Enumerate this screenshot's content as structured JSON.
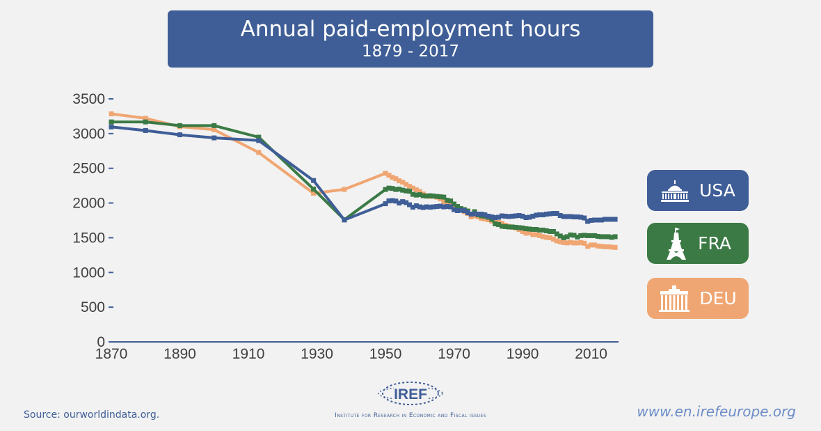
{
  "header": {
    "title": "Annual paid-employment hours",
    "subtitle": "1879 - 2017"
  },
  "legend": [
    {
      "label": "USA",
      "icon": "capitol-icon",
      "color": "#3f5e97"
    },
    {
      "label": "FRA",
      "icon": "eiffel-tower-icon",
      "color": "#3b7a45"
    },
    {
      "label": "DEU",
      "icon": "brandenburg-gate-icon",
      "color": "#f0a672"
    }
  ],
  "footer": {
    "source": "Source: ourworldindata.org.",
    "url": "www.en.irefeurope.org",
    "logo_text": "IREF",
    "institute": "Institute for Research in Economic and Fiscal issues"
  },
  "chart_data": {
    "type": "line",
    "title": "Annual paid-employment hours",
    "subtitle": "1879 - 2017",
    "xlabel": "",
    "ylabel": "",
    "xlim": [
      1870,
      2018
    ],
    "ylim": [
      0,
      3500
    ],
    "xticks": [
      1870,
      1890,
      1910,
      1930,
      1950,
      1970,
      1990,
      2010
    ],
    "yticks": [
      0,
      500,
      1000,
      1500,
      2000,
      2500,
      3000,
      3500
    ],
    "series": [
      {
        "name": "USA",
        "color": "#3f5e97",
        "points": [
          [
            1870,
            3096
          ],
          [
            1880,
            3044
          ],
          [
            1890,
            2983
          ],
          [
            1900,
            2938
          ],
          [
            1913,
            2900
          ],
          [
            1929,
            2324
          ],
          [
            1938,
            1756
          ],
          [
            1950,
            1990
          ],
          [
            1951,
            2030
          ],
          [
            1952,
            2035
          ],
          [
            1953,
            2028
          ],
          [
            1954,
            2000
          ],
          [
            1955,
            2020
          ],
          [
            1956,
            2005
          ],
          [
            1957,
            1975
          ],
          [
            1958,
            1940
          ],
          [
            1959,
            1960
          ],
          [
            1960,
            1945
          ],
          [
            1961,
            1935
          ],
          [
            1962,
            1945
          ],
          [
            1963,
            1940
          ],
          [
            1964,
            1945
          ],
          [
            1965,
            1950
          ],
          [
            1966,
            1955
          ],
          [
            1967,
            1945
          ],
          [
            1968,
            1950
          ],
          [
            1969,
            1945
          ],
          [
            1970,
            1905
          ],
          [
            1971,
            1890
          ],
          [
            1972,
            1895
          ],
          [
            1973,
            1890
          ],
          [
            1974,
            1860
          ],
          [
            1975,
            1840
          ],
          [
            1976,
            1845
          ],
          [
            1977,
            1840
          ],
          [
            1978,
            1840
          ],
          [
            1979,
            1830
          ],
          [
            1980,
            1810
          ],
          [
            1981,
            1800
          ],
          [
            1982,
            1790
          ],
          [
            1983,
            1795
          ],
          [
            1984,
            1815
          ],
          [
            1985,
            1810
          ],
          [
            1986,
            1805
          ],
          [
            1987,
            1810
          ],
          [
            1988,
            1815
          ],
          [
            1989,
            1820
          ],
          [
            1990,
            1810
          ],
          [
            1991,
            1790
          ],
          [
            1992,
            1795
          ],
          [
            1993,
            1810
          ],
          [
            1994,
            1825
          ],
          [
            1995,
            1830
          ],
          [
            1996,
            1830
          ],
          [
            1997,
            1840
          ],
          [
            1998,
            1845
          ],
          [
            1999,
            1850
          ],
          [
            2000,
            1850
          ],
          [
            2001,
            1820
          ],
          [
            2002,
            1805
          ],
          [
            2003,
            1805
          ],
          [
            2004,
            1805
          ],
          [
            2005,
            1800
          ],
          [
            2006,
            1800
          ],
          [
            2007,
            1795
          ],
          [
            2008,
            1785
          ],
          [
            2009,
            1735
          ],
          [
            2010,
            1750
          ],
          [
            2011,
            1755
          ],
          [
            2012,
            1755
          ],
          [
            2013,
            1755
          ],
          [
            2014,
            1765
          ],
          [
            2015,
            1765
          ],
          [
            2016,
            1765
          ],
          [
            2017,
            1765
          ]
        ]
      },
      {
        "name": "FRA",
        "color": "#3b7a45",
        "points": [
          [
            1870,
            3168
          ],
          [
            1880,
            3168
          ],
          [
            1890,
            3115
          ],
          [
            1900,
            3115
          ],
          [
            1913,
            2948
          ],
          [
            1929,
            2200
          ],
          [
            1938,
            1760
          ],
          [
            1950,
            2195
          ],
          [
            1951,
            2215
          ],
          [
            1952,
            2210
          ],
          [
            1953,
            2195
          ],
          [
            1954,
            2200
          ],
          [
            1955,
            2185
          ],
          [
            1956,
            2175
          ],
          [
            1957,
            2170
          ],
          [
            1958,
            2125
          ],
          [
            1959,
            2115
          ],
          [
            1960,
            2120
          ],
          [
            1961,
            2105
          ],
          [
            1962,
            2100
          ],
          [
            1963,
            2105
          ],
          [
            1964,
            2100
          ],
          [
            1965,
            2095
          ],
          [
            1966,
            2090
          ],
          [
            1967,
            2085
          ],
          [
            1968,
            2040
          ],
          [
            1969,
            2030
          ],
          [
            1970,
            1985
          ],
          [
            1971,
            1950
          ],
          [
            1972,
            1920
          ],
          [
            1973,
            1905
          ],
          [
            1974,
            1885
          ],
          [
            1975,
            1840
          ],
          [
            1976,
            1875
          ],
          [
            1977,
            1830
          ],
          [
            1978,
            1815
          ],
          [
            1979,
            1810
          ],
          [
            1980,
            1795
          ],
          [
            1981,
            1765
          ],
          [
            1982,
            1700
          ],
          [
            1983,
            1690
          ],
          [
            1984,
            1665
          ],
          [
            1985,
            1660
          ],
          [
            1986,
            1655
          ],
          [
            1987,
            1655
          ],
          [
            1988,
            1650
          ],
          [
            1989,
            1645
          ],
          [
            1990,
            1640
          ],
          [
            1991,
            1630
          ],
          [
            1992,
            1625
          ],
          [
            1993,
            1620
          ],
          [
            1994,
            1620
          ],
          [
            1995,
            1610
          ],
          [
            1996,
            1610
          ],
          [
            1997,
            1600
          ],
          [
            1998,
            1590
          ],
          [
            1999,
            1590
          ],
          [
            2000,
            1555
          ],
          [
            2001,
            1525
          ],
          [
            2002,
            1500
          ],
          [
            2003,
            1515
          ],
          [
            2004,
            1540
          ],
          [
            2005,
            1535
          ],
          [
            2006,
            1510
          ],
          [
            2007,
            1530
          ],
          [
            2008,
            1535
          ],
          [
            2009,
            1530
          ],
          [
            2010,
            1530
          ],
          [
            2011,
            1530
          ],
          [
            2012,
            1520
          ],
          [
            2013,
            1515
          ],
          [
            2014,
            1515
          ],
          [
            2015,
            1515
          ],
          [
            2016,
            1505
          ],
          [
            2017,
            1515
          ]
        ]
      },
      {
        "name": "DEU",
        "color": "#f0a672",
        "points": [
          [
            1870,
            3284
          ],
          [
            1880,
            3220
          ],
          [
            1890,
            3100
          ],
          [
            1900,
            3056
          ],
          [
            1913,
            2728
          ],
          [
            1929,
            2140
          ],
          [
            1938,
            2196
          ],
          [
            1950,
            2428
          ],
          [
            1951,
            2400
          ],
          [
            1952,
            2370
          ],
          [
            1953,
            2350
          ],
          [
            1954,
            2320
          ],
          [
            1955,
            2300
          ],
          [
            1956,
            2270
          ],
          [
            1957,
            2240
          ],
          [
            1958,
            2215
          ],
          [
            1959,
            2190
          ],
          [
            1960,
            2165
          ],
          [
            1961,
            2130
          ],
          [
            1962,
            2105
          ],
          [
            1963,
            2095
          ],
          [
            1964,
            2100
          ],
          [
            1965,
            2085
          ],
          [
            1966,
            2060
          ],
          [
            1967,
            2020
          ],
          [
            1968,
            2000
          ],
          [
            1969,
            1985
          ],
          [
            1970,
            1965
          ],
          [
            1971,
            1925
          ],
          [
            1972,
            1900
          ],
          [
            1973,
            1875
          ],
          [
            1974,
            1850
          ],
          [
            1975,
            1800
          ],
          [
            1976,
            1815
          ],
          [
            1977,
            1800
          ],
          [
            1978,
            1780
          ],
          [
            1979,
            1770
          ],
          [
            1980,
            1760
          ],
          [
            1981,
            1740
          ],
          [
            1982,
            1730
          ],
          [
            1983,
            1720
          ],
          [
            1984,
            1705
          ],
          [
            1985,
            1680
          ],
          [
            1986,
            1665
          ],
          [
            1987,
            1650
          ],
          [
            1988,
            1640
          ],
          [
            1989,
            1620
          ],
          [
            1990,
            1590
          ],
          [
            1991,
            1565
          ],
          [
            1992,
            1570
          ],
          [
            1993,
            1545
          ],
          [
            1994,
            1545
          ],
          [
            1995,
            1530
          ],
          [
            1996,
            1515
          ],
          [
            1997,
            1505
          ],
          [
            1998,
            1500
          ],
          [
            1999,
            1480
          ],
          [
            2000,
            1455
          ],
          [
            2001,
            1440
          ],
          [
            2002,
            1430
          ],
          [
            2003,
            1425
          ],
          [
            2004,
            1435
          ],
          [
            2005,
            1425
          ],
          [
            2006,
            1425
          ],
          [
            2007,
            1430
          ],
          [
            2008,
            1420
          ],
          [
            2009,
            1375
          ],
          [
            2010,
            1395
          ],
          [
            2011,
            1395
          ],
          [
            2012,
            1380
          ],
          [
            2013,
            1375
          ],
          [
            2014,
            1370
          ],
          [
            2015,
            1370
          ],
          [
            2016,
            1365
          ],
          [
            2017,
            1360
          ]
        ]
      }
    ]
  }
}
